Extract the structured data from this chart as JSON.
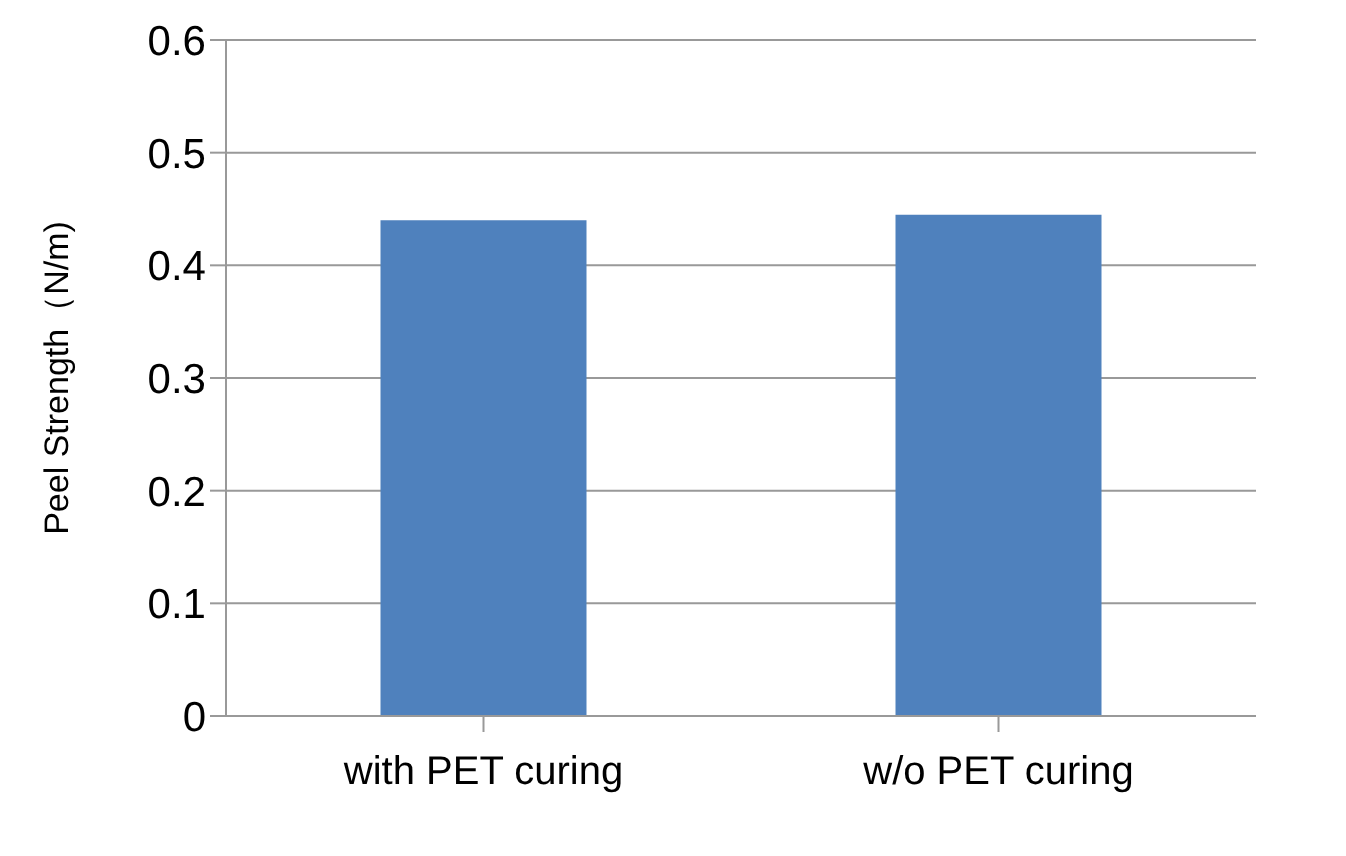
{
  "chart_data": {
    "type": "bar",
    "ylabel": "Peel Strength（N/m)",
    "categories": [
      "with PET curing",
      "w/o PET curing"
    ],
    "series": [
      {
        "color": "#4f81bd",
        "values": [
          0.44,
          0.445
        ]
      }
    ],
    "ylim": [
      0,
      0.6
    ],
    "yticks": [
      0,
      0.1,
      0.2,
      0.3,
      0.4,
      0.5,
      0.6
    ],
    "grid": "y",
    "legend": false
  }
}
